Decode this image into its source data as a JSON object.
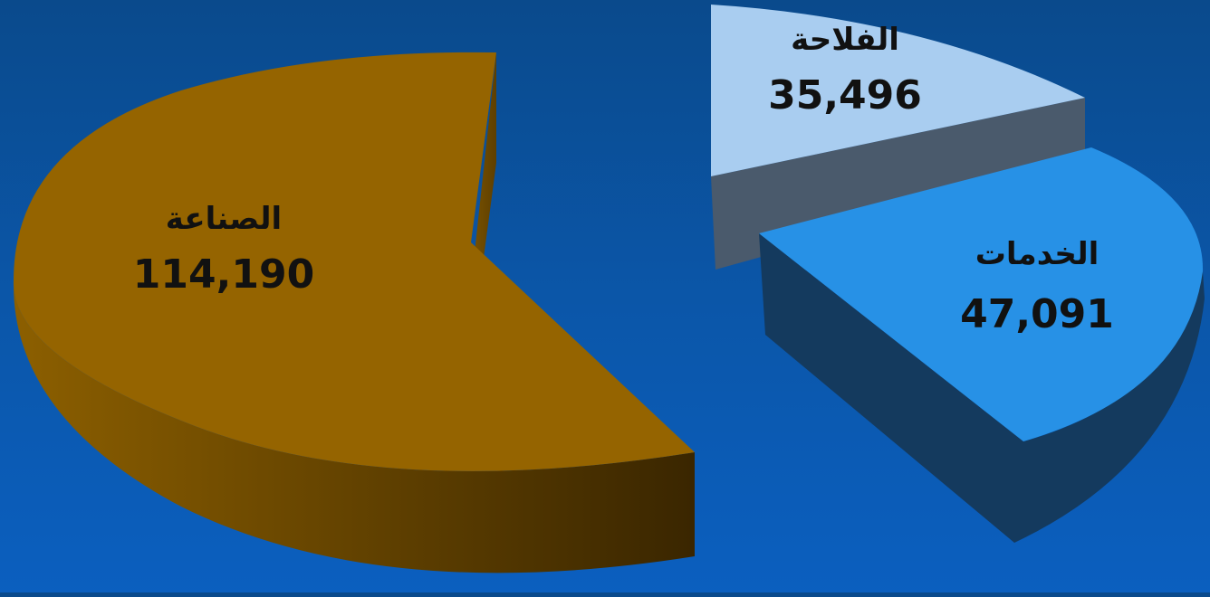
{
  "chart_data": {
    "type": "pie",
    "style": "3d-exploded",
    "slices": [
      {
        "label": "الصناعة",
        "value": 114190,
        "value_label": "114,190",
        "color": "#956400",
        "side_color": "#6a4500"
      },
      {
        "label": "الفلاحة",
        "value": 35496,
        "value_label": "35,496",
        "color": "#a9cdf0",
        "side_color": "#4a5a6c"
      },
      {
        "label": "الخدمات",
        "value": 47091,
        "value_label": "47,091",
        "color": "#2791e6",
        "side_color": "#143a5e"
      }
    ],
    "background_color": "#0b56a8"
  }
}
